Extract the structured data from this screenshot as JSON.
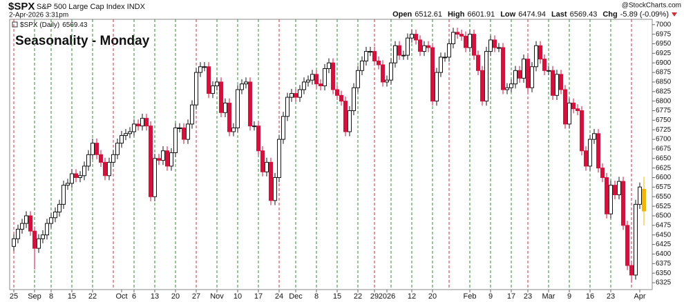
{
  "chart_data": {
    "type": "candlestick",
    "title": "$SPX",
    "subtitle": "S&P 500 Large Cap Index INDX",
    "date_label": "2-Apr-2026 3:31pm",
    "watermark": "@StockCharts.com",
    "legend_label": "$SPX (Daily)",
    "legend_value": 6569.43,
    "annotation": "Seasonality - Monday",
    "annotation_color": "#1a1adf",
    "quote": [
      {
        "label": "Open",
        "value": 6512.61
      },
      {
        "label": "High",
        "value": 6601.91
      },
      {
        "label": "Low",
        "value": 6474.94
      },
      {
        "label": "Last",
        "value": 6569.43
      },
      {
        "label": "Chg",
        "value": -5.89
      }
    ],
    "chg_pct": "(-0.09%)",
    "up_color": "#111111",
    "down_color": "#d2123c",
    "last_color": "#f2b705",
    "week_line_colors": {
      "g": "#2e8b2e",
      "r": "#c8323c"
    },
    "ylim": [
      6307,
      7014
    ],
    "yticks": [
      6325,
      6350,
      6375,
      6400,
      6425,
      6450,
      6475,
      6500,
      6525,
      6550,
      6575,
      6600,
      6625,
      6650,
      6675,
      6700,
      6725,
      6750,
      6775,
      6800,
      6825,
      6850,
      6875,
      6900,
      6925,
      6950,
      6975,
      7000
    ],
    "categories": [
      "25",
      null,
      null,
      null,
      null,
      "Sep",
      null,
      null,
      null,
      "8",
      null,
      null,
      null,
      null,
      "15",
      null,
      null,
      null,
      null,
      "22",
      null,
      null,
      null,
      null,
      null,
      null,
      "Oct",
      null,
      null,
      "6",
      null,
      null,
      null,
      null,
      "13",
      null,
      null,
      null,
      null,
      "20",
      null,
      null,
      null,
      null,
      "27",
      null,
      null,
      null,
      null,
      "Nov",
      null,
      null,
      null,
      null,
      "10",
      null,
      null,
      null,
      null,
      "17",
      null,
      null,
      null,
      null,
      "24",
      null,
      null,
      null,
      "Dec",
      null,
      null,
      null,
      null,
      "8",
      null,
      null,
      null,
      null,
      "15",
      null,
      null,
      null,
      null,
      "22",
      null,
      null,
      null,
      "29",
      null,
      null,
      "2026",
      null,
      null,
      null,
      null,
      null,
      "12",
      null,
      null,
      null,
      null,
      "20",
      null,
      null,
      null,
      null,
      null,
      null,
      null,
      null,
      "Feb",
      null,
      null,
      null,
      null,
      "9",
      null,
      null,
      null,
      null,
      "17",
      null,
      null,
      null,
      "23",
      null,
      null,
      null,
      null,
      "Mar",
      null,
      null,
      null,
      null,
      "9",
      null,
      null,
      null,
      null,
      "16",
      null,
      null,
      null,
      null,
      "23",
      null,
      null,
      null,
      null,
      null,
      null,
      "Apr",
      null
    ],
    "week_lines": [
      "r",
      null,
      null,
      null,
      null,
      "g",
      null,
      null,
      null,
      "g",
      null,
      null,
      null,
      null,
      "g",
      null,
      null,
      null,
      null,
      "g",
      null,
      null,
      null,
      null,
      "r",
      null,
      null,
      null,
      null,
      "g",
      null,
      null,
      null,
      null,
      "g",
      null,
      null,
      null,
      null,
      "g",
      null,
      null,
      null,
      null,
      "r",
      null,
      null,
      null,
      null,
      "g",
      null,
      null,
      null,
      null,
      "g",
      null,
      null,
      null,
      null,
      "g",
      null,
      null,
      null,
      null,
      "r",
      null,
      null,
      null,
      "g",
      null,
      null,
      null,
      null,
      "g",
      null,
      null,
      null,
      null,
      "g",
      null,
      null,
      null,
      null,
      "g",
      null,
      null,
      null,
      "r",
      null,
      null,
      null,
      "g",
      null,
      null,
      null,
      null,
      "g",
      null,
      null,
      null,
      null,
      "g",
      null,
      null,
      null,
      "r",
      null,
      null,
      null,
      null,
      "g",
      null,
      null,
      null,
      null,
      "g",
      null,
      null,
      null,
      null,
      "g",
      null,
      null,
      null,
      "r",
      null,
      null,
      null,
      null,
      "g",
      null,
      null,
      null,
      null,
      "g",
      null,
      null,
      null,
      null,
      "g",
      null,
      null,
      null,
      null,
      "g",
      null,
      null,
      null,
      null,
      "r",
      null,
      null,
      null
    ],
    "open": [
      6420,
      6440,
      6465,
      6480,
      6500,
      6460,
      6415,
      6440,
      6450,
      6480,
      6495,
      6510,
      6530,
      6580,
      6585,
      6610,
      6600,
      6605,
      6630,
      6660,
      6690,
      6660,
      6640,
      6605,
      6640,
      6660,
      6690,
      6710,
      6715,
      6720,
      6740,
      6735,
      6755,
      6735,
      6550,
      6650,
      6645,
      6670,
      6630,
      6665,
      6730,
      6730,
      6700,
      6740,
      6790,
      6875,
      6890,
      6890,
      6820,
      6840,
      6850,
      6770,
      6795,
      6720,
      6730,
      6830,
      6845,
      6850,
      6735,
      6735,
      6670,
      6615,
      6640,
      6540,
      6600,
      6700,
      6760,
      6810,
      6820,
      6810,
      6830,
      6850,
      6855,
      6870,
      6845,
      6840,
      6885,
      6900,
      6830,
      6815,
      6800,
      6720,
      6775,
      6835,
      6880,
      6905,
      6930,
      6930,
      6905,
      6895,
      6850,
      6855,
      6900,
      6945,
      6920,
      6920,
      6965,
      6975,
      6960,
      6930,
      6945,
      6940,
      6800,
      6875,
      6915,
      6915,
      6950,
      6980,
      6975,
      6970,
      6940,
      6975,
      6920,
      6880,
      6800,
      6930,
      6960,
      6940,
      6940,
      6830,
      6835,
      6845,
      6880,
      6860,
      6910,
      6835,
      6890,
      6945,
      6910,
      6880,
      6880,
      6815,
      6870,
      6830,
      6740,
      6795,
      6780,
      6775,
      6670,
      6630,
      6700,
      6715,
      6625,
      6600,
      6505,
      6580,
      6555,
      6590,
      6475,
      6370,
      6345,
      6530,
      6512.61
    ],
    "high": [
      6452,
      6477,
      6492,
      6512,
      6512,
      6472,
      6452,
      6462,
      6492,
      6507,
      6522,
      6542,
      6592,
      6597,
      6622,
      6622,
      6617,
      6642,
      6672,
      6702,
      6702,
      6672,
      6652,
      6652,
      6672,
      6702,
      6722,
      6727,
      6732,
      6752,
      6752,
      6767,
      6767,
      6747,
      6662,
      6662,
      6682,
      6682,
      6677,
      6742,
      6742,
      6742,
      6752,
      6802,
      6887,
      6902,
      6902,
      6902,
      6852,
      6862,
      6862,
      6807,
      6807,
      6742,
      6842,
      6857,
      6862,
      6862,
      6747,
      6747,
      6682,
      6652,
      6652,
      6612,
      6712,
      6772,
      6822,
      6832,
      6832,
      6842,
      6862,
      6867,
      6882,
      6882,
      6857,
      6897,
      6912,
      6912,
      6842,
      6827,
      6812,
      6787,
      6847,
      6892,
      6917,
      6942,
      6942,
      6942,
      6917,
      6907,
      6867,
      6912,
      6957,
      6957,
      6932,
      6977,
      6987,
      6987,
      6972,
      6957,
      6957,
      6952,
      6887,
      6927,
      6927,
      6962,
      6992,
      6992,
      6987,
      6982,
      6987,
      6987,
      6932,
      6892,
      6942,
      6972,
      6972,
      6952,
      6952,
      6847,
      6857,
      6892,
      6892,
      6922,
      6922,
      6902,
      6957,
      6957,
      6922,
      6892,
      6892,
      6882,
      6882,
      6842,
      6807,
      6807,
      6792,
      6787,
      6682,
      6712,
      6727,
      6727,
      6637,
      6612,
      6592,
      6592,
      6602,
      6602,
      6487,
      6382,
      6542,
      6587,
      6601.91
    ],
    "low": [
      6408,
      6428,
      6453,
      6468,
      6448,
      6360,
      6403,
      6428,
      6438,
      6468,
      6483,
      6498,
      6518,
      6568,
      6573,
      6588,
      6588,
      6593,
      6618,
      6648,
      6648,
      6628,
      6593,
      6593,
      6628,
      6648,
      6678,
      6698,
      6703,
      6708,
      6723,
      6723,
      6723,
      6538,
      6538,
      6633,
      6633,
      6618,
      6618,
      6653,
      6718,
      6688,
      6688,
      6728,
      6778,
      6863,
      6878,
      6808,
      6808,
      6828,
      6758,
      6758,
      6708,
      6708,
      6718,
      6818,
      6833,
      6723,
      6723,
      6658,
      6603,
      6603,
      6528,
      6528,
      6588,
      6688,
      6748,
      6798,
      6798,
      6798,
      6818,
      6838,
      6843,
      6833,
      6828,
      6828,
      6873,
      6818,
      6803,
      6788,
      6708,
      6708,
      6763,
      6823,
      6868,
      6893,
      6918,
      6893,
      6883,
      6838,
      6838,
      6843,
      6888,
      6908,
      6908,
      6908,
      6953,
      6948,
      6918,
      6918,
      6928,
      6788,
      6788,
      6863,
      6903,
      6903,
      6938,
      6963,
      6958,
      6928,
      6928,
      6908,
      6868,
      6788,
      6788,
      6918,
      6928,
      6928,
      6818,
      6818,
      6823,
      6833,
      6848,
      6848,
      6823,
      6823,
      6878,
      6898,
      6868,
      6868,
      6803,
      6803,
      6818,
      6728,
      6728,
      6768,
      6763,
      6658,
      6618,
      6618,
      6688,
      6613,
      6588,
      6493,
      6493,
      6543,
      6543,
      6463,
      6358,
      6325,
      6333,
      6518,
      6474.94
    ],
    "close": [
      6440,
      6465,
      6480,
      6500,
      6460,
      6415,
      6440,
      6450,
      6480,
      6495,
      6510,
      6530,
      6580,
      6585,
      6610,
      6600,
      6605,
      6630,
      6660,
      6690,
      6660,
      6640,
      6605,
      6640,
      6660,
      6690,
      6710,
      6715,
      6720,
      6740,
      6735,
      6755,
      6735,
      6550,
      6650,
      6645,
      6670,
      6630,
      6665,
      6730,
      6730,
      6700,
      6740,
      6790,
      6875,
      6890,
      6890,
      6820,
      6840,
      6850,
      6770,
      6795,
      6720,
      6730,
      6830,
      6845,
      6850,
      6735,
      6735,
      6670,
      6615,
      6640,
      6540,
      6600,
      6700,
      6760,
      6810,
      6820,
      6810,
      6830,
      6850,
      6855,
      6870,
      6845,
      6840,
      6885,
      6900,
      6830,
      6815,
      6800,
      6720,
      6775,
      6835,
      6880,
      6905,
      6930,
      6930,
      6905,
      6895,
      6850,
      6855,
      6900,
      6945,
      6920,
      6920,
      6965,
      6975,
      6960,
      6930,
      6945,
      6940,
      6800,
      6875,
      6915,
      6915,
      6950,
      6980,
      6975,
      6970,
      6940,
      6975,
      6920,
      6880,
      6800,
      6930,
      6960,
      6940,
      6940,
      6830,
      6835,
      6845,
      6880,
      6860,
      6910,
      6835,
      6890,
      6945,
      6910,
      6880,
      6880,
      6815,
      6870,
      6830,
      6740,
      6795,
      6780,
      6775,
      6670,
      6630,
      6700,
      6715,
      6625,
      6600,
      6505,
      6580,
      6555,
      6590,
      6475,
      6370,
      6345,
      6530,
      6575.32,
      6569.43
    ]
  }
}
